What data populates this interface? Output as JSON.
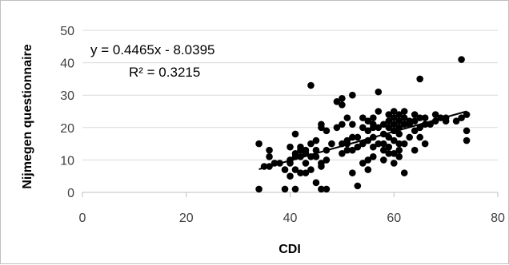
{
  "chart_data": {
    "type": "scatter",
    "title": "",
    "xlabel": "CDI",
    "ylabel": "Nijmegen questionnaire",
    "xlim": [
      0,
      80
    ],
    "ylim": [
      0,
      50
    ],
    "x_ticks": [
      0,
      20,
      40,
      60,
      80
    ],
    "y_ticks": [
      0,
      10,
      20,
      30,
      40,
      50
    ],
    "x_tick_labels": [
      "0",
      "20",
      "40",
      "60",
      "80"
    ],
    "y_tick_labels": [
      "0",
      "10",
      "20",
      "30",
      "40",
      "50"
    ],
    "grid": "horizontal",
    "legend": "none",
    "point_color": "#000000",
    "trendline": {
      "type": "linear",
      "slope": 0.4465,
      "intercept": -8.0395,
      "x_range": [
        34,
        74
      ],
      "equation_label": "y = 0.4465x - 8.0395",
      "r2_label": "R² = 0.3215"
    },
    "points": [
      [
        34,
        1
      ],
      [
        34,
        15
      ],
      [
        35,
        8
      ],
      [
        36,
        8
      ],
      [
        36,
        11
      ],
      [
        36,
        13
      ],
      [
        37,
        9
      ],
      [
        38,
        9
      ],
      [
        39,
        1
      ],
      [
        39,
        7
      ],
      [
        40,
        5
      ],
      [
        40,
        9
      ],
      [
        40,
        10
      ],
      [
        40,
        14
      ],
      [
        41,
        7
      ],
      [
        41,
        1
      ],
      [
        41,
        11
      ],
      [
        41,
        12
      ],
      [
        41,
        18
      ],
      [
        42,
        6
      ],
      [
        42,
        11
      ],
      [
        42,
        13
      ],
      [
        42,
        14
      ],
      [
        43,
        6
      ],
      [
        43,
        9
      ],
      [
        43,
        12
      ],
      [
        43,
        13
      ],
      [
        44,
        7
      ],
      [
        44,
        11
      ],
      [
        44,
        15
      ],
      [
        44,
        33
      ],
      [
        45,
        3
      ],
      [
        45,
        11
      ],
      [
        45,
        13
      ],
      [
        45,
        16
      ],
      [
        46,
        1
      ],
      [
        46,
        8
      ],
      [
        46,
        9
      ],
      [
        46,
        20
      ],
      [
        46,
        21
      ],
      [
        47,
        1
      ],
      [
        47,
        10
      ],
      [
        47,
        13
      ],
      [
        47,
        19
      ],
      [
        48,
        15
      ],
      [
        49,
        20
      ],
      [
        49,
        28
      ],
      [
        50,
        12
      ],
      [
        50,
        15
      ],
      [
        50,
        21
      ],
      [
        50,
        29
      ],
      [
        50,
        27
      ],
      [
        51,
        13
      ],
      [
        51,
        15
      ],
      [
        51,
        16
      ],
      [
        51,
        23
      ],
      [
        52,
        6
      ],
      [
        52,
        13
      ],
      [
        52,
        17
      ],
      [
        52,
        21
      ],
      [
        52,
        30
      ],
      [
        53,
        2
      ],
      [
        53,
        14
      ],
      [
        53,
        17
      ],
      [
        54,
        9
      ],
      [
        54,
        15
      ],
      [
        54,
        20
      ],
      [
        54,
        23
      ],
      [
        55,
        7
      ],
      [
        55,
        10
      ],
      [
        55,
        16
      ],
      [
        55,
        19
      ],
      [
        55,
        22
      ],
      [
        56,
        11
      ],
      [
        56,
        14
      ],
      [
        56,
        17
      ],
      [
        56,
        20
      ],
      [
        56,
        21
      ],
      [
        56,
        23
      ],
      [
        57,
        15
      ],
      [
        57,
        20
      ],
      [
        57,
        25
      ],
      [
        57,
        31
      ],
      [
        58,
        10
      ],
      [
        58,
        13
      ],
      [
        58,
        15
      ],
      [
        58,
        18
      ],
      [
        58,
        21
      ],
      [
        59,
        12
      ],
      [
        59,
        14
      ],
      [
        59,
        17
      ],
      [
        59,
        20
      ],
      [
        59,
        22
      ],
      [
        59,
        24
      ],
      [
        60,
        9
      ],
      [
        60,
        12
      ],
      [
        60,
        16
      ],
      [
        60,
        19
      ],
      [
        60,
        21
      ],
      [
        60,
        23
      ],
      [
        60,
        25
      ],
      [
        61,
        11
      ],
      [
        61,
        13
      ],
      [
        61,
        15
      ],
      [
        61,
        18
      ],
      [
        61,
        20
      ],
      [
        61,
        22
      ],
      [
        61,
        24
      ],
      [
        62,
        6
      ],
      [
        62,
        15
      ],
      [
        62,
        21
      ],
      [
        62,
        23
      ],
      [
        62,
        25
      ],
      [
        63,
        17
      ],
      [
        63,
        21
      ],
      [
        63,
        22
      ],
      [
        64,
        13
      ],
      [
        64,
        19
      ],
      [
        64,
        22
      ],
      [
        64,
        24
      ],
      [
        65,
        17
      ],
      [
        65,
        20
      ],
      [
        65,
        23
      ],
      [
        65,
        35
      ],
      [
        66,
        15
      ],
      [
        66,
        21
      ],
      [
        66,
        23
      ],
      [
        67,
        21
      ],
      [
        68,
        22
      ],
      [
        68,
        24
      ],
      [
        69,
        23
      ],
      [
        70,
        22
      ],
      [
        70,
        23
      ],
      [
        72,
        22
      ],
      [
        73,
        41
      ],
      [
        73,
        23
      ],
      [
        74,
        16
      ],
      [
        74,
        19
      ],
      [
        74,
        24
      ]
    ]
  }
}
